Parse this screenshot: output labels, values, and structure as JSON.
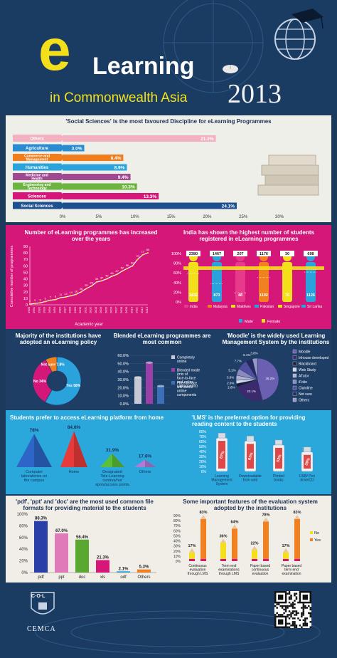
{
  "header": {
    "title_e": "e",
    "title_learning": "Learning",
    "title_sub": "in Commonwealth Asia",
    "year": "2013"
  },
  "colors": {
    "navy": "#1a3c63",
    "magenta": "#d6177a",
    "yellow": "#f4e01a",
    "sky": "#2aa8dc",
    "orange": "#f08020",
    "purple": "#7a2e8c"
  },
  "disciplines": {
    "title": "'Social Sciences' is the most favoured Discipline for eLearning Programmes",
    "chart_data": {
      "type": "bar",
      "orientation": "horizontal",
      "categories": [
        "Others",
        "Agriculture",
        "Commerce and Management",
        "Humanities",
        "Medicine and Health",
        "Engineering and Technology",
        "Sciences",
        "Social Sciences"
      ],
      "values": [
        21.2,
        3.0,
        8.4,
        8.9,
        9.4,
        10.3,
        13.3,
        24.1
      ],
      "value_labels": [
        "21.2%",
        "3.0%",
        "8.4%",
        "8.9%",
        "9.4%",
        "10.3%",
        "13.3%",
        "24.1%"
      ],
      "colors": [
        "#f3b0c1",
        "#2a8bd0",
        "#f07d1e",
        "#2aa3dc",
        "#a04890",
        "#6db33f",
        "#d6177a",
        "#1e4f8e"
      ],
      "xticks": [
        "0%",
        "5%",
        "10%",
        "15%",
        "20%",
        "25%",
        "30%"
      ],
      "xlim": [
        0,
        30
      ]
    }
  },
  "growth": {
    "title": "Number of eLearning programmes has increased over the years",
    "chart_data": {
      "type": "line",
      "x": [
        "1990",
        "1991",
        "1992",
        "1993",
        "1994",
        "1995",
        "1996",
        "1997",
        "1998",
        "1999",
        "2000",
        "2001",
        "2002",
        "2003",
        "2004",
        "2005",
        "2006",
        "2007",
        "2008",
        "2009",
        "2010",
        "2011",
        "2012",
        "2013"
      ],
      "y": [
        1,
        2,
        3,
        5,
        7,
        8,
        11,
        12,
        14,
        16,
        20,
        25,
        29,
        35,
        37,
        40,
        44,
        47,
        52,
        56,
        60,
        70,
        77,
        80
      ],
      "point_labels": [
        "1",
        "2",
        "3",
        "5",
        "7",
        "8",
        "11",
        "12",
        "14",
        "16",
        "20",
        "25",
        "29",
        "35",
        "37",
        "40",
        "44",
        "47",
        "52",
        "56",
        "60",
        "70",
        "77",
        "80"
      ],
      "yticks": [
        "0",
        "10",
        "20",
        "30",
        "40",
        "50",
        "60",
        "70",
        "80",
        "90"
      ],
      "ylim": [
        0,
        90
      ],
      "ylabel": "Cumulative number of programmes",
      "xlabel": "Academic year"
    }
  },
  "students": {
    "title": "India has shown the highest number of students registered in eLearning programmes",
    "chart_data": {
      "type": "bar",
      "stacked": true,
      "categories": [
        "India",
        "Malaysia",
        "Maldives",
        "Pakistan",
        "Singapore",
        "Sri Lanka"
      ],
      "series": [
        {
          "name": "Male",
          "values": [
            3432,
            873,
            48,
            1192,
            70,
            1126
          ]
        },
        {
          "name": "Female",
          "values": [
            2380,
            1467,
            207,
            1176,
            30,
            698
          ]
        }
      ],
      "yticks": [
        "0%",
        "20%",
        "40%",
        "60%",
        "80%",
        "100%"
      ]
    },
    "top_labels": [
      "2380",
      "1467",
      "207",
      "1176",
      "30",
      "698"
    ],
    "bottom_labels": [
      "3432",
      "873",
      "48",
      "1192",
      "70",
      "1126"
    ],
    "countries": [
      "India",
      "Malaysia",
      "Maldives",
      "Pakistan",
      "Singapore",
      "Sri Lanka"
    ],
    "legend": [
      "Male",
      "Female"
    ]
  },
  "policy": {
    "title": "Majority of the institutions have adopted an eLearning policy",
    "chart_data": {
      "type": "pie",
      "labels": [
        "Yes",
        "No",
        "Not sure"
      ],
      "values": [
        58,
        34,
        7.8
      ],
      "display": [
        "Yes 58%",
        "No 34%",
        "Not sure 7.8%"
      ],
      "colors": [
        "#2aa3dc",
        "#d6177a",
        "#f08020"
      ]
    }
  },
  "blended": {
    "title": "Blended eLearning programmes are most common",
    "chart_data": {
      "type": "bar",
      "categories": [
        "Completely online",
        "Blended mode (mix of face-to-face and online components)",
        "Face-to-face with some online components"
      ],
      "values": [
        33,
        51,
        22
      ],
      "colors": [
        "#c9c9d6",
        "#9b3fa8",
        "#3d6fb8"
      ],
      "yticks": [
        "0.0%",
        "10.0%",
        "20.0%",
        "30.0%",
        "40.0%",
        "50.0%",
        "60.0%"
      ],
      "ylim": [
        0,
        60
      ]
    },
    "legend": [
      "Completely online",
      "Blended mode (mix of face-to-face and online components)",
      "Face-to-face with some online components"
    ]
  },
  "lms": {
    "title": "'Moodle' is the widely used Learning Management System by the institutions",
    "chart_data": {
      "type": "pie",
      "labels": [
        "Moodle",
        "Inhouse developed",
        "Blackboard",
        "Web Study",
        "ATutor",
        "iFolio",
        "Claroline",
        "Not sure",
        "Others"
      ],
      "values": [
        46.2,
        23.1,
        2.6,
        2.6,
        3.8,
        5.1,
        7.7,
        5.1,
        3.8
      ],
      "display": [
        "46.2%",
        "23.1%",
        "2.6%",
        "2.6%",
        "3.8%",
        "5.1%",
        "7.7%",
        "5.1%",
        "3.8%"
      ],
      "colors": [
        "#6a5fb0",
        "#3b2a6e",
        "#1c1c3a",
        "#d8d8e8",
        "#b0b0d0",
        "#8a8ac0",
        "#5050a0",
        "#282860",
        "#9898c8"
      ]
    }
  },
  "access": {
    "title": "Students prefer to access eLearning platform from home",
    "chart_data": {
      "type": "bar",
      "categories": [
        "Computer laboratories on the campus",
        "Home",
        "Designated Tele-Learning centres/hot spots/access points",
        "Others"
      ],
      "values": [
        78,
        84.6,
        31.9,
        17.6
      ],
      "value_labels": [
        "78%",
        "84.6%",
        "31.9%",
        "17.6%"
      ],
      "colors": [
        "#2e66c8",
        "#e83a3a",
        "#5bbf3a",
        "#b07ad8"
      ]
    }
  },
  "reading": {
    "title": "'LMS' is the preferred option for providing reading content to the students",
    "chart_data": {
      "type": "bar",
      "categories": [
        "Learning Management System",
        "Downloadable from web",
        "Printed books",
        "USB/ Pen drive/CD"
      ],
      "values": [
        67,
        61,
        53,
        39
      ],
      "value_labels": [
        "67%",
        "61%",
        "53%",
        "39%"
      ],
      "yticks": [
        "0%",
        "10%",
        "20%",
        "30%",
        "40%",
        "50%",
        "60%",
        "70%",
        "80%"
      ],
      "ylim": [
        0,
        80
      ]
    }
  },
  "formats": {
    "title": "'pdf', 'ppt' and 'doc' are the most used common file formats for providing material to the students",
    "chart_data": {
      "type": "bar",
      "categories": [
        "pdf",
        "ppt",
        "doc",
        "xls",
        "odf",
        "Others"
      ],
      "values": [
        88.3,
        67.0,
        56.4,
        21.3,
        2.1,
        5.3
      ],
      "value_labels": [
        "88.3%",
        "67.0%",
        "56.4%",
        "21.3%",
        "2.1%",
        "5.3%"
      ],
      "colors": [
        "#2a3fa8",
        "#e07ab8",
        "#5aa832",
        "#d6177a",
        "#2aa3dc",
        "#f08020"
      ],
      "yticks": [
        "0%",
        "20%",
        "40%",
        "60%",
        "80%",
        "100%"
      ],
      "ylim": [
        0,
        100
      ]
    }
  },
  "evaluation": {
    "title": "Some important features of the evaluation system adopted by the institutions",
    "chart_data": {
      "type": "bar",
      "categories": [
        "Continuous evaluation through LMS",
        "Term end examinations through LMS",
        "Paper based continuous evaluation",
        "Paper based term end examination"
      ],
      "series": [
        {
          "name": "No",
          "values": [
            17,
            36,
            22,
            17
          ]
        },
        {
          "name": "Yes",
          "values": [
            83,
            64,
            78,
            83
          ]
        }
      ],
      "yticks": [
        "0%",
        "10%",
        "20%",
        "30%",
        "40%",
        "50%",
        "60%",
        "70%",
        "80%",
        "90%"
      ],
      "ylim": [
        0,
        90
      ]
    },
    "no_labels": [
      "17%",
      "36%",
      "22%",
      "17%"
    ],
    "yes_labels": [
      "83%",
      "64%",
      "78%",
      "83%"
    ],
    "legend": [
      "No",
      "Yes"
    ]
  },
  "footer": {
    "logo_text": "C·O·L",
    "org": "CEMCA"
  }
}
